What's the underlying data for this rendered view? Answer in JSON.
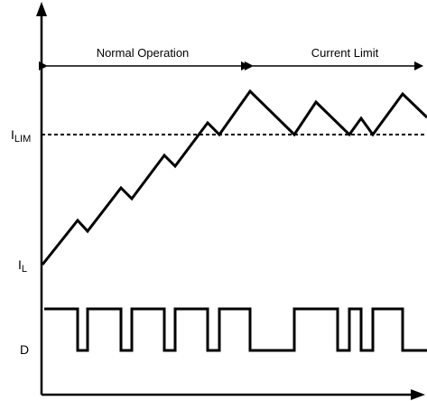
{
  "sections": {
    "normal": "Normal Operation",
    "limit": "Current Limit"
  },
  "labels": {
    "ilim_main": "I",
    "ilim_sub": "LIM",
    "il_main": "I",
    "il_sub": "L",
    "duty": "D"
  }
}
